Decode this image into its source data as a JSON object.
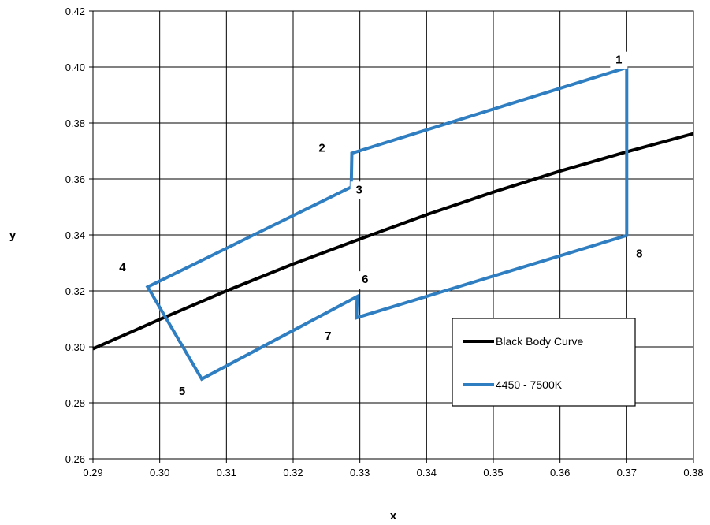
{
  "chart_data": {
    "type": "line",
    "title": "",
    "xlabel": "x",
    "ylabel": "y",
    "xlim": [
      0.29,
      0.38
    ],
    "ylim": [
      0.26,
      0.42
    ],
    "x_ticks": [
      "0.29",
      "0.30",
      "0.31",
      "0.32",
      "0.33",
      "0.34",
      "0.35",
      "0.36",
      "0.37",
      "0.38"
    ],
    "y_ticks": [
      "0.26",
      "0.28",
      "0.30",
      "0.32",
      "0.34",
      "0.36",
      "0.38",
      "0.40",
      "0.42"
    ],
    "grid": true,
    "legend_position": "lower-right",
    "series": [
      {
        "name": "Black Body Curve",
        "color": "#000000",
        "x": [
          0.29,
          0.3,
          0.31,
          0.32,
          0.33,
          0.34,
          0.35,
          0.36,
          0.37,
          0.38
        ],
        "y": [
          0.2993,
          0.3098,
          0.32,
          0.3296,
          0.3385,
          0.3472,
          0.3553,
          0.3628,
          0.3697,
          0.3762
        ]
      },
      {
        "name": "4450 - 7500K",
        "color": "#2F7EC1",
        "x": [
          0.37,
          0.3288,
          0.3287,
          0.2982,
          0.3063,
          0.3296,
          0.3295,
          0.37,
          0.37
        ],
        "y": [
          0.3998,
          0.3692,
          0.3571,
          0.3214,
          0.2885,
          0.318,
          0.3104,
          0.3398,
          0.3998
        ]
      }
    ],
    "point_labels": [
      {
        "text": "1",
        "x": 0.37,
        "y": 0.3998
      },
      {
        "text": "2",
        "x": 0.3288,
        "y": 0.3692
      },
      {
        "text": "3",
        "x": 0.3287,
        "y": 0.3571
      },
      {
        "text": "4",
        "x": 0.2982,
        "y": 0.3214
      },
      {
        "text": "5",
        "x": 0.3063,
        "y": 0.2885
      },
      {
        "text": "6",
        "x": 0.3296,
        "y": 0.318
      },
      {
        "text": "7",
        "x": 0.3295,
        "y": 0.3104
      },
      {
        "text": "8",
        "x": 0.37,
        "y": 0.3398
      }
    ]
  }
}
